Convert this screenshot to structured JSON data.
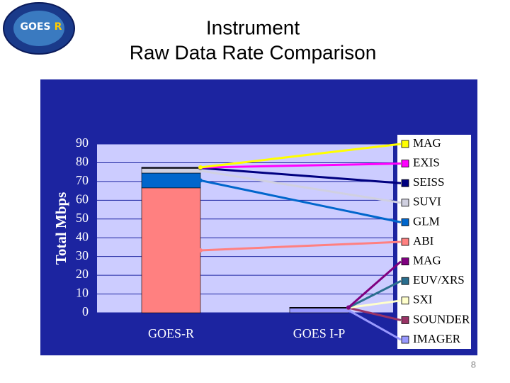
{
  "logo": {
    "text": "GOES",
    "letter": "R"
  },
  "page_number": "8",
  "chart_data": {
    "type": "stacked-bar",
    "title": [
      "Instrument",
      "Raw Data Rate Comparison"
    ],
    "y_label": "Total Mbps",
    "categories": [
      "GOES-R",
      "GOES I-P"
    ],
    "ylim": [
      0,
      90
    ],
    "yticks": [
      0,
      10,
      20,
      30,
      40,
      50,
      60,
      70,
      80,
      90
    ],
    "grid": true,
    "series": [
      {
        "name": "IMAGER",
        "color": "#9999ff",
        "values": [
          null,
          2.6
        ]
      },
      {
        "name": "SOUNDER",
        "color": "#993366",
        "values": [
          null,
          0.04
        ]
      },
      {
        "name": "SXI",
        "color": "#ffffcc",
        "values": [
          null,
          0.2
        ]
      },
      {
        "name": "EUV/XRS",
        "color": "#2a6f8f",
        "values": [
          null,
          0.01
        ]
      },
      {
        "name": "MAG",
        "color": "#800080",
        "values": [
          null,
          0.01
        ]
      },
      {
        "name": "ABI",
        "color": "#ff8080",
        "values": [
          66.6,
          null
        ]
      },
      {
        "name": "GLM",
        "color": "#0066cc",
        "values": [
          7.9,
          null
        ]
      },
      {
        "name": "SUVI",
        "color": "#d0d0e0",
        "values": [
          2.5,
          null
        ]
      },
      {
        "name": "SEISS",
        "color": "#000080",
        "values": [
          0.4,
          null
        ]
      },
      {
        "name": "EXIS",
        "color": "#ff00ff",
        "values": [
          0.1,
          null
        ]
      },
      {
        "name": "MAG",
        "color": "#ffff00",
        "values": [
          0.05,
          null
        ]
      }
    ]
  }
}
